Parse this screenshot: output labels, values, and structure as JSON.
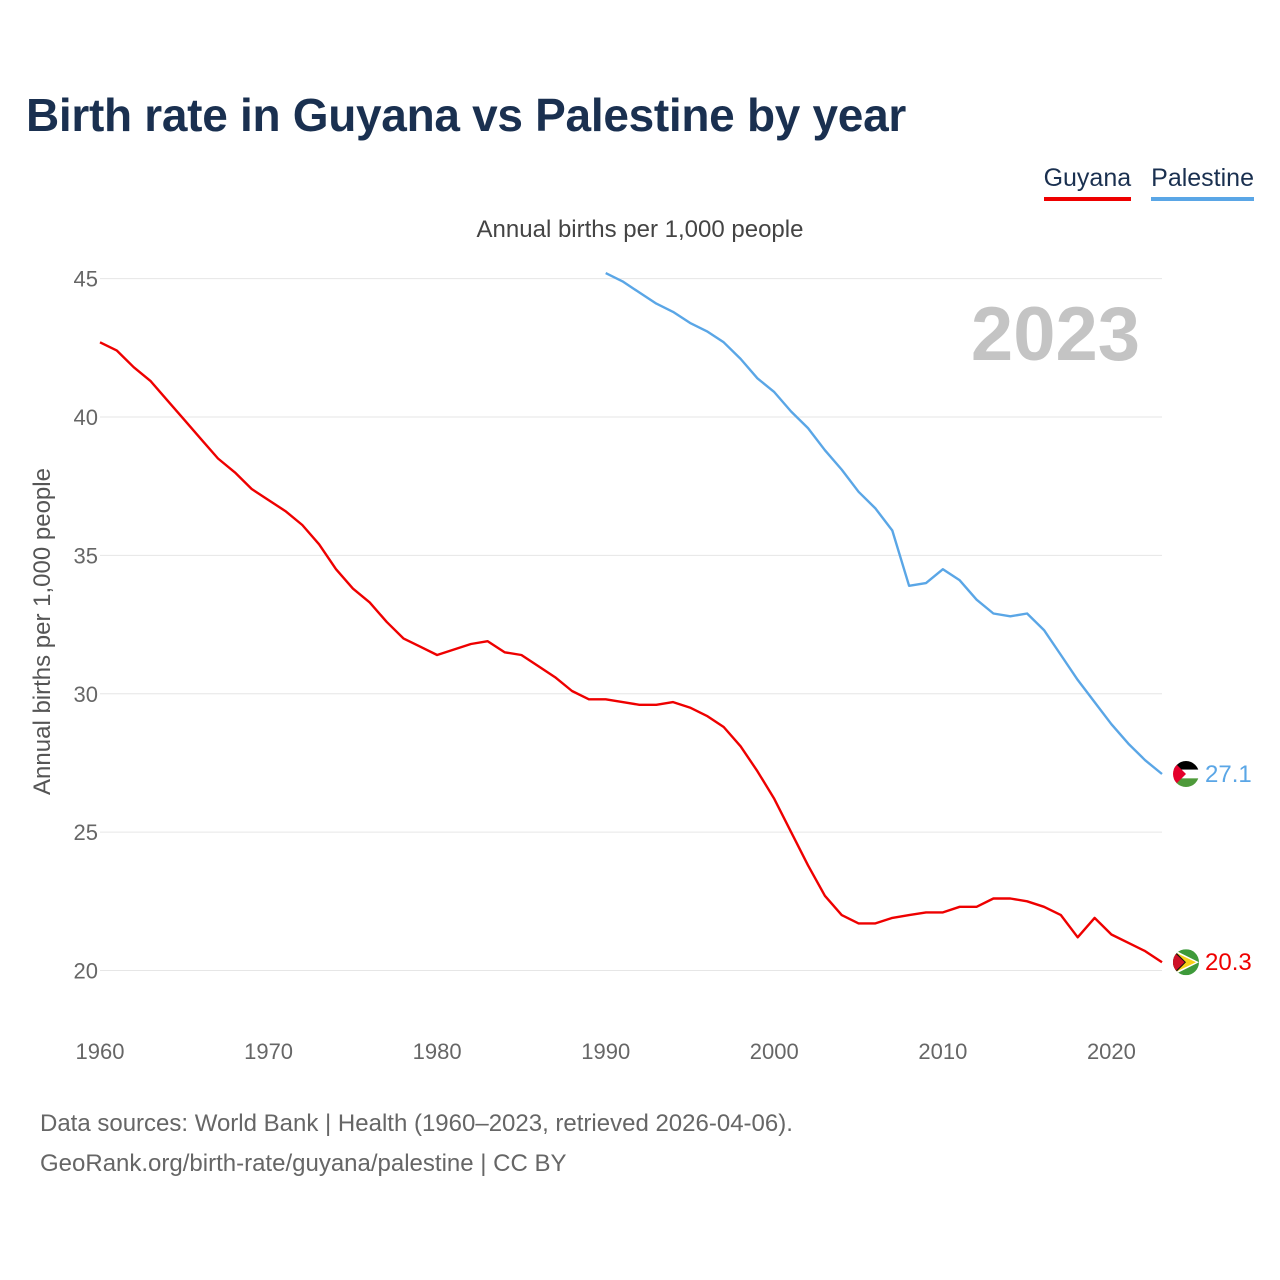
{
  "title": "Birth rate in Guyana vs Palestine by year",
  "subtitle": "Annual births per 1,000 people",
  "footer": {
    "line1": "Data sources: World Bank | Health (1960–2023, retrieved 2026-04-06).",
    "line2": "GeoRank.org/birth-rate/guyana/palestine | CC BY"
  },
  "legend": [
    {
      "name": "Guyana",
      "color": "#ee0000"
    },
    {
      "name": "Palestine",
      "color": "#5aa6e6"
    }
  ],
  "year_watermark": "2023",
  "chart_data": {
    "type": "line",
    "title": "Birth rate in Guyana vs Palestine by year",
    "subtitle": "Annual births per 1,000 people",
    "xlabel": "",
    "ylabel": "Annual births per 1,000 people",
    "xlim": [
      1960,
      2023
    ],
    "ylim": [
      18.5,
      46
    ],
    "xticks": [
      1960,
      1970,
      1980,
      1990,
      2000,
      2010,
      2020
    ],
    "yticks": [
      20,
      25,
      30,
      35,
      40,
      45
    ],
    "grid": true,
    "legend_position": "top-right",
    "series": [
      {
        "name": "Guyana",
        "color": "#ee0000",
        "end_label": "20.3",
        "flag_icon": "guyana-flag-icon",
        "x": [
          1960,
          1961,
          1962,
          1963,
          1964,
          1965,
          1966,
          1967,
          1968,
          1969,
          1970,
          1971,
          1972,
          1973,
          1974,
          1975,
          1976,
          1977,
          1978,
          1979,
          1980,
          1981,
          1982,
          1983,
          1984,
          1985,
          1986,
          1987,
          1988,
          1989,
          1990,
          1991,
          1992,
          1993,
          1994,
          1995,
          1996,
          1997,
          1998,
          1999,
          2000,
          2001,
          2002,
          2003,
          2004,
          2005,
          2006,
          2007,
          2008,
          2009,
          2010,
          2011,
          2012,
          2013,
          2014,
          2015,
          2016,
          2017,
          2018,
          2019,
          2020,
          2021,
          2022,
          2023
        ],
        "values": [
          42.7,
          42.4,
          41.8,
          41.3,
          40.6,
          39.9,
          39.2,
          38.5,
          38.0,
          37.4,
          37.0,
          36.6,
          36.1,
          35.4,
          34.5,
          33.8,
          33.3,
          32.6,
          32.0,
          31.7,
          31.4,
          31.6,
          31.8,
          31.9,
          31.5,
          31.4,
          31.0,
          30.6,
          30.1,
          29.8,
          29.8,
          29.7,
          29.6,
          29.6,
          29.7,
          29.5,
          29.2,
          28.8,
          28.1,
          27.2,
          26.2,
          25.0,
          23.8,
          22.7,
          22.0,
          21.7,
          21.7,
          21.9,
          22.0,
          22.1,
          22.1,
          22.3,
          22.3,
          22.6,
          22.6,
          22.5,
          22.3,
          22.0,
          21.2,
          21.9,
          21.3,
          21.0,
          20.7,
          20.3
        ]
      },
      {
        "name": "Palestine",
        "color": "#5aa6e6",
        "end_label": "27.1",
        "flag_icon": "palestine-flag-icon",
        "x": [
          1990,
          1991,
          1992,
          1993,
          1994,
          1995,
          1996,
          1997,
          1998,
          1999,
          2000,
          2001,
          2002,
          2003,
          2004,
          2005,
          2006,
          2007,
          2008,
          2009,
          2010,
          2011,
          2012,
          2013,
          2014,
          2015,
          2016,
          2017,
          2018,
          2019,
          2020,
          2021,
          2022,
          2023
        ],
        "values": [
          45.2,
          44.9,
          44.5,
          44.1,
          43.8,
          43.4,
          43.1,
          42.7,
          42.1,
          41.4,
          40.9,
          40.2,
          39.6,
          38.8,
          38.1,
          37.3,
          36.7,
          35.9,
          33.9,
          34.0,
          34.5,
          34.1,
          33.4,
          32.9,
          32.8,
          32.9,
          32.3,
          31.4,
          30.5,
          29.7,
          28.9,
          28.2,
          27.6,
          27.1
        ]
      }
    ]
  }
}
